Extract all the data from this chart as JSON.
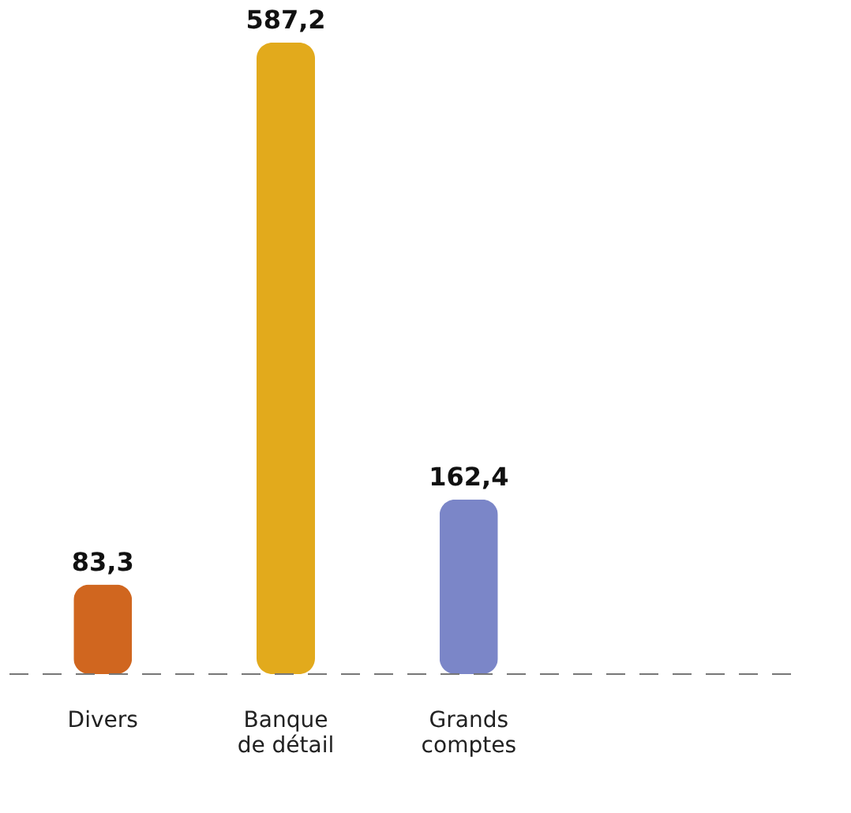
{
  "chart_data": {
    "type": "bar",
    "categories": [
      "Divers",
      "Banque de détail",
      "Grands comptes"
    ],
    "values": [
      83.3,
      587.2,
      162.4
    ],
    "colors": [
      "#d0661f",
      "#e2aa1c",
      "#7b86c8"
    ],
    "value_labels": [
      "83,3",
      "587,2",
      "162,4"
    ]
  }
}
